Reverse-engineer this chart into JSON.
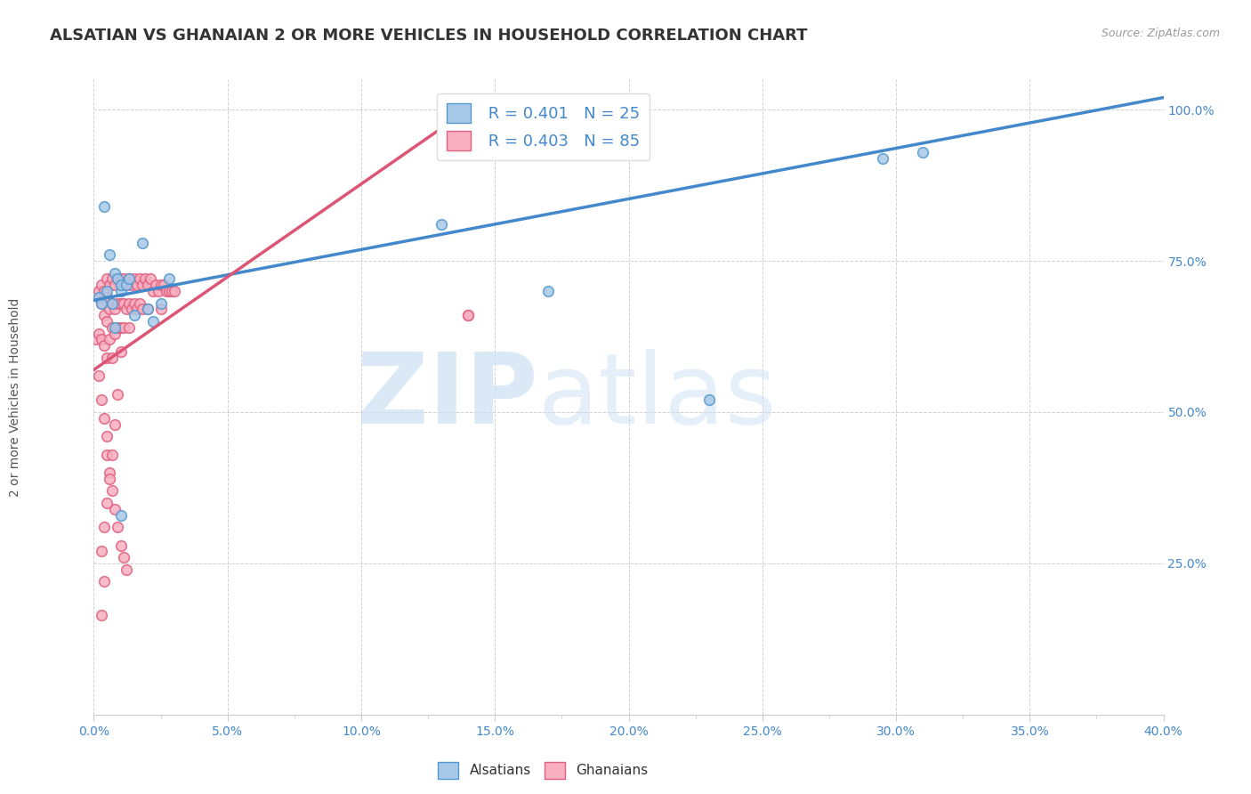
{
  "title": "ALSATIAN VS GHANAIAN 2 OR MORE VEHICLES IN HOUSEHOLD CORRELATION CHART",
  "source": "Source: ZipAtlas.com",
  "ylabel": "2 or more Vehicles in Household",
  "xlim": [
    0.0,
    0.4
  ],
  "ylim": [
    0.0,
    1.05
  ],
  "x_tick_labels": [
    "0.0%",
    "",
    "5.0%",
    "",
    "10.0%",
    "",
    "15.0%",
    "",
    "20.0%",
    "",
    "25.0%",
    "",
    "30.0%",
    "",
    "35.0%",
    "",
    "40.0%"
  ],
  "x_tick_values": [
    0.0,
    0.025,
    0.05,
    0.075,
    0.1,
    0.125,
    0.15,
    0.175,
    0.2,
    0.225,
    0.25,
    0.275,
    0.3,
    0.325,
    0.35,
    0.375,
    0.4
  ],
  "y_tick_labels": [
    "25.0%",
    "50.0%",
    "75.0%",
    "100.0%"
  ],
  "y_tick_values": [
    0.25,
    0.5,
    0.75,
    1.0
  ],
  "legend_r_alsatian": "R = 0.401",
  "legend_n_alsatian": "N = 25",
  "legend_r_ghanaian": "R = 0.403",
  "legend_n_ghanaian": "N = 85",
  "alsatian_color": "#a8c8e8",
  "alsatian_edge_color": "#5599cc",
  "alsatian_line_color": "#4488cc",
  "ghanaian_color": "#f8b0c0",
  "ghanaian_edge_color": "#e06080",
  "ghanaian_line_color": "#dd5575",
  "alsatian_scatter_x": [
    0.002,
    0.004,
    0.006,
    0.007,
    0.008,
    0.009,
    0.01,
    0.01,
    0.012,
    0.013,
    0.015,
    0.018,
    0.02,
    0.022,
    0.025,
    0.028,
    0.003,
    0.005,
    0.008,
    0.01,
    0.13,
    0.17,
    0.23,
    0.295,
    0.31
  ],
  "alsatian_scatter_y": [
    0.69,
    0.84,
    0.76,
    0.68,
    0.73,
    0.72,
    0.7,
    0.71,
    0.71,
    0.72,
    0.66,
    0.78,
    0.67,
    0.65,
    0.68,
    0.72,
    0.68,
    0.7,
    0.64,
    0.33,
    0.81,
    0.7,
    0.52,
    0.92,
    0.93
  ],
  "ghanaian_scatter_x": [
    0.001,
    0.002,
    0.002,
    0.003,
    0.003,
    0.003,
    0.004,
    0.004,
    0.004,
    0.005,
    0.005,
    0.005,
    0.005,
    0.006,
    0.006,
    0.006,
    0.007,
    0.007,
    0.007,
    0.007,
    0.008,
    0.008,
    0.008,
    0.009,
    0.009,
    0.009,
    0.01,
    0.01,
    0.01,
    0.01,
    0.011,
    0.011,
    0.011,
    0.012,
    0.012,
    0.013,
    0.013,
    0.013,
    0.014,
    0.014,
    0.015,
    0.015,
    0.016,
    0.016,
    0.017,
    0.017,
    0.018,
    0.018,
    0.019,
    0.02,
    0.02,
    0.021,
    0.022,
    0.023,
    0.024,
    0.025,
    0.025,
    0.026,
    0.027,
    0.028,
    0.029,
    0.03,
    0.002,
    0.003,
    0.004,
    0.005,
    0.005,
    0.006,
    0.007,
    0.008,
    0.009,
    0.01,
    0.011,
    0.012,
    0.003,
    0.004,
    0.005,
    0.006,
    0.007,
    0.008,
    0.009,
    0.003,
    0.004,
    0.14,
    0.14
  ],
  "ghanaian_scatter_y": [
    0.62,
    0.7,
    0.63,
    0.71,
    0.68,
    0.62,
    0.7,
    0.66,
    0.61,
    0.72,
    0.69,
    0.65,
    0.59,
    0.71,
    0.67,
    0.62,
    0.72,
    0.68,
    0.64,
    0.59,
    0.71,
    0.67,
    0.63,
    0.72,
    0.68,
    0.64,
    0.72,
    0.68,
    0.64,
    0.6,
    0.72,
    0.68,
    0.64,
    0.71,
    0.67,
    0.72,
    0.68,
    0.64,
    0.71,
    0.67,
    0.72,
    0.68,
    0.71,
    0.67,
    0.72,
    0.68,
    0.71,
    0.67,
    0.72,
    0.71,
    0.67,
    0.72,
    0.7,
    0.71,
    0.7,
    0.71,
    0.67,
    0.71,
    0.7,
    0.7,
    0.7,
    0.7,
    0.56,
    0.52,
    0.49,
    0.46,
    0.43,
    0.4,
    0.37,
    0.34,
    0.31,
    0.28,
    0.26,
    0.24,
    0.27,
    0.31,
    0.35,
    0.39,
    0.43,
    0.48,
    0.53,
    0.165,
    0.22,
    0.66,
    0.66
  ],
  "alsatian_trend_x": [
    0.0,
    0.4
  ],
  "alsatian_trend_y": [
    0.685,
    1.02
  ],
  "ghanaian_trend_x": [
    0.0,
    0.14
  ],
  "ghanaian_trend_y": [
    0.57,
    1.0
  ],
  "background_color": "#ffffff",
  "grid_color": "#cccccc",
  "title_fontsize": 13,
  "tick_fontsize": 10,
  "legend_fontsize": 13
}
